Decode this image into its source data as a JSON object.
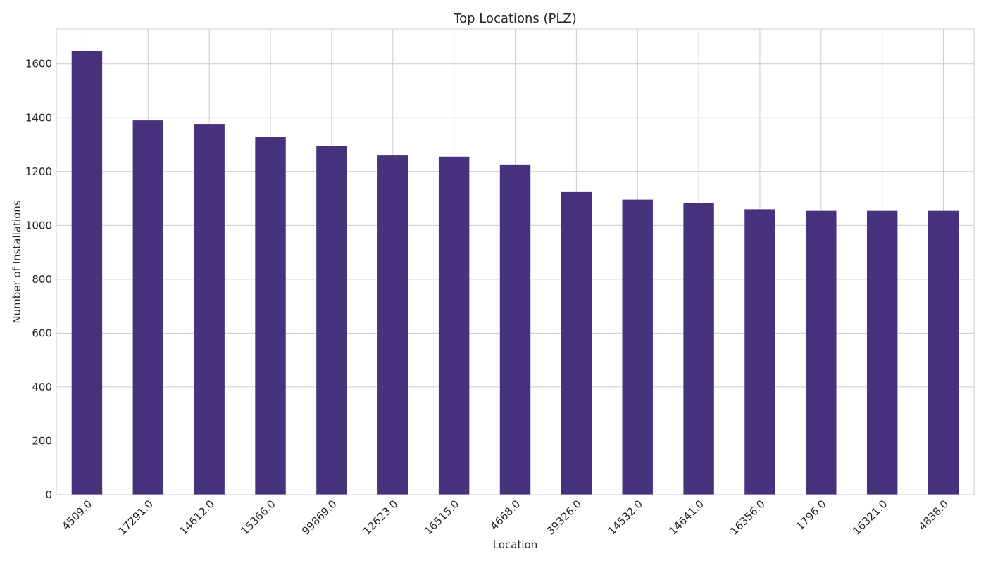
{
  "chart_data": {
    "type": "bar",
    "title": "Top Locations (PLZ)",
    "xlabel": "Location",
    "ylabel": "Number of Installations",
    "categories": [
      "4509.0",
      "17291.0",
      "14612.0",
      "15366.0",
      "99869.0",
      "12623.0",
      "16515.0",
      "4668.0",
      "39326.0",
      "14532.0",
      "14641.0",
      "16356.0",
      "1796.0",
      "16321.0",
      "4838.0"
    ],
    "values": [
      1648,
      1390,
      1377,
      1328,
      1296,
      1262,
      1255,
      1226,
      1124,
      1096,
      1083,
      1060,
      1054,
      1054,
      1054
    ],
    "ylim": [
      0,
      1730
    ],
    "yticks": [
      0,
      200,
      400,
      600,
      800,
      1000,
      1200,
      1400,
      1600
    ],
    "grid": true,
    "legend": "none",
    "colors": {
      "bar": "#47327d",
      "grid": "#cccccc",
      "spine": "#cccccc",
      "text": "#262626"
    }
  }
}
